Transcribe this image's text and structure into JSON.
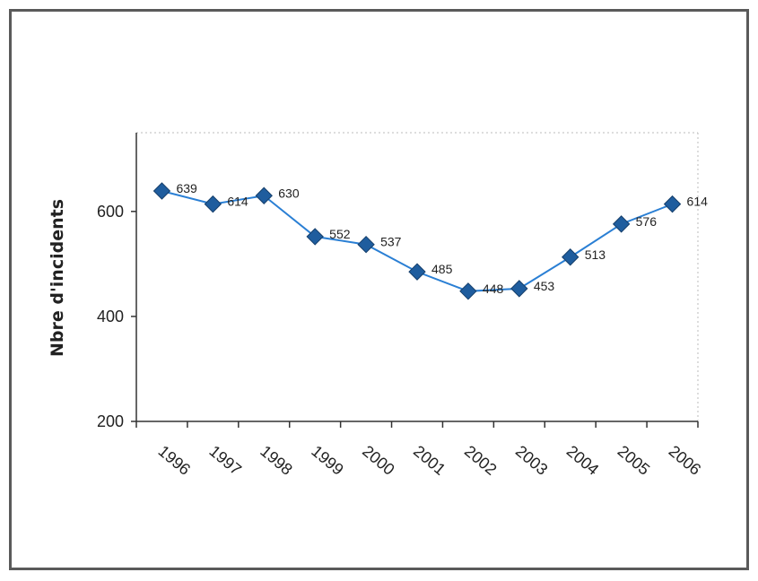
{
  "chart_data": {
    "type": "line",
    "title": "",
    "xlabel": "",
    "ylabel": "Nbre d'incidents",
    "categories": [
      "1996",
      "1997",
      "1998",
      "1999",
      "2000",
      "2001",
      "2002",
      "2003",
      "2004",
      "2005",
      "2006"
    ],
    "series": [
      {
        "values": [
          639,
          614,
          630,
          552,
          537,
          485,
          448,
          453,
          513,
          576,
          614
        ]
      }
    ],
    "data_labels": [
      "639",
      "614",
      "630",
      "552",
      "537",
      "485",
      "448",
      "453",
      "513",
      "576",
      "614"
    ],
    "y_ticks": [
      "200",
      "400",
      "600"
    ],
    "ylim": [
      200,
      750
    ],
    "grid": false,
    "legend": "none",
    "colors": {
      "line": "#2a7fd4",
      "marker": "#1f5d9e",
      "axis": "#333333",
      "frame": "#5a5a5a"
    }
  }
}
